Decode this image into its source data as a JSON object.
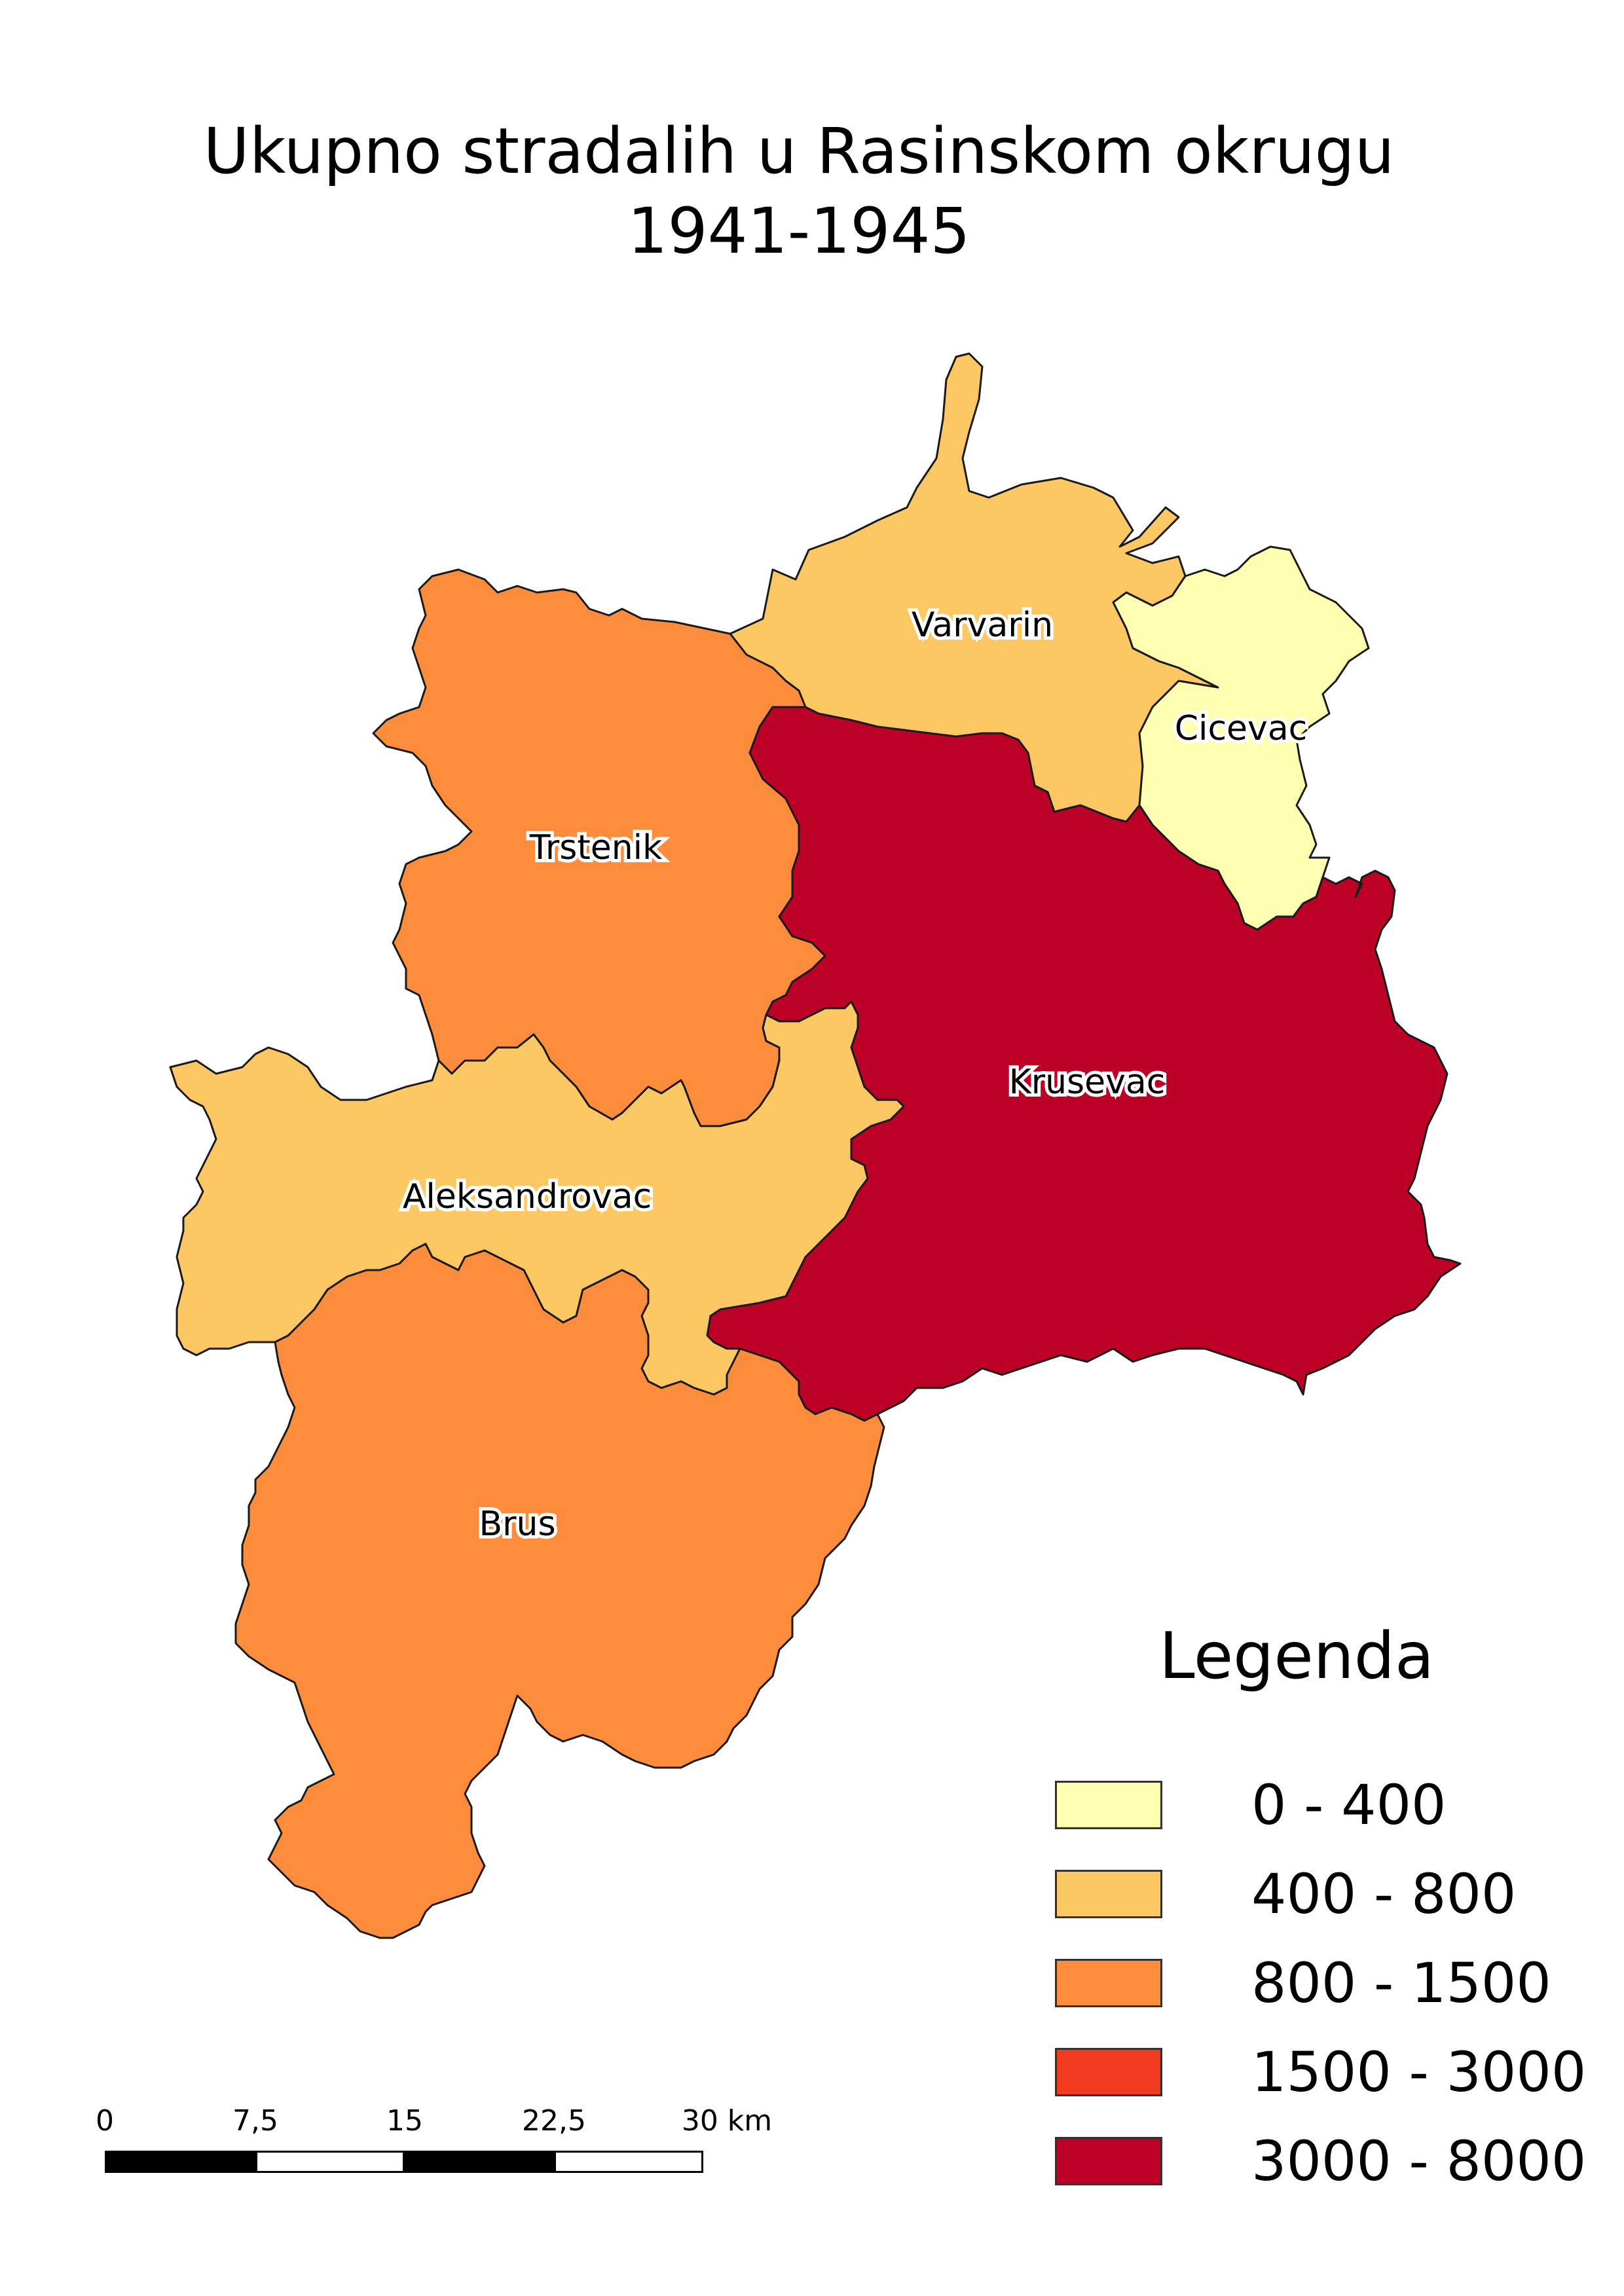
{
  "title": {
    "line1": "Ukupno stradalih u Rasinskom okrugu",
    "line2": "1941-1945"
  },
  "regions": [
    {
      "name": "Varvarin",
      "class": "400 - 800",
      "color": "#fdc864"
    },
    {
      "name": "Cicevac",
      "class": "0 - 400",
      "color": "#ffffb2"
    },
    {
      "name": "Trstenik",
      "class": "800 - 1500",
      "color": "#fd8d3c"
    },
    {
      "name": "Krusevac",
      "class": "3000 - 8000",
      "color": "#bd0026"
    },
    {
      "name": "Aleksandrovac",
      "class": "400 - 800",
      "color": "#fdc864"
    },
    {
      "name": "Brus",
      "class": "800 - 1500",
      "color": "#fd8d3c"
    }
  ],
  "legend": {
    "title": "Legenda",
    "items": [
      {
        "label": "0 - 400",
        "color": "#ffffb2"
      },
      {
        "label": "400 - 800",
        "color": "#fdc864"
      },
      {
        "label": "800 - 1500",
        "color": "#fd8d3c"
      },
      {
        "label": "1500 - 3000",
        "color": "#f03b20"
      },
      {
        "label": "3000 - 8000",
        "color": "#bd0026"
      }
    ]
  },
  "scalebar": {
    "ticks": [
      "0",
      "7,5",
      "15",
      "22,5",
      "30 km"
    ]
  }
}
